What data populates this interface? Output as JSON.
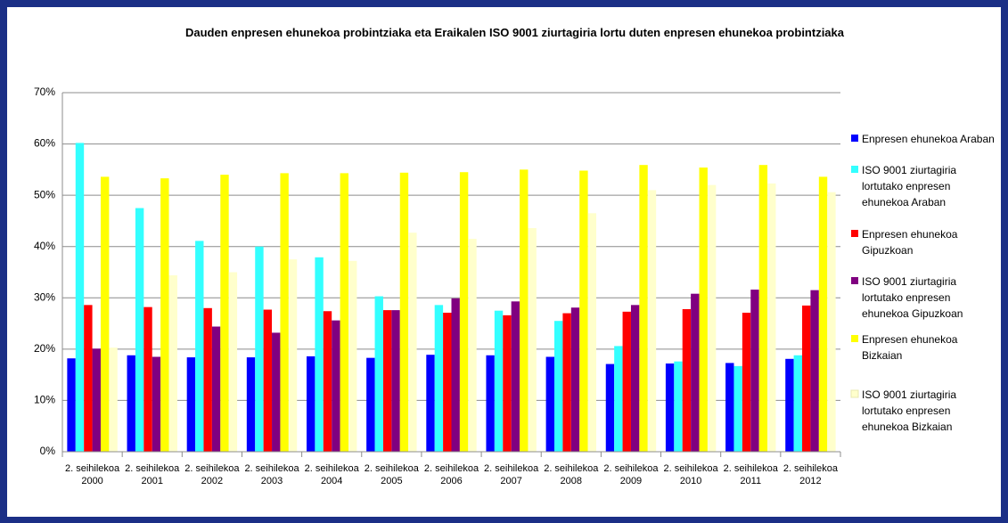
{
  "chart_data": {
    "type": "bar",
    "title": "Dauden enpresen ehunekoa probintziaka eta Eraikalen ISO 9001 ziurtagiria lortu duten enpresen ehunekoa probintziaka",
    "categories": [
      "2. seihilekoa 2000",
      "2. seihilekoa 2001",
      "2. seihilekoa 2002",
      "2. seihilekoa 2003",
      "2. seihilekoa 2004",
      "2. seihilekoa 2005",
      "2. seihilekoa 2006",
      "2. seihilekoa 2007",
      "2. seihilekoa 2008",
      "2. seihilekoa 2009",
      "2. seihilekoa 2010",
      "2. seihilekoa 2011",
      "2. seihilekoa 2012"
    ],
    "series": [
      {
        "name": "Enpresen ehunekoa Araban",
        "color": "#0000ff",
        "values": [
          18.2,
          18.8,
          18.4,
          18.4,
          18.6,
          18.3,
          18.9,
          18.8,
          18.5,
          17.1,
          17.2,
          17.3,
          18.1
        ]
      },
      {
        "name": "ISO 9001 ziurtagiria lortutako enpresen ehunekoa Araban",
        "color": "#33ffff",
        "values": [
          60.2,
          47.5,
          41.1,
          40.0,
          37.9,
          30.3,
          28.6,
          27.5,
          25.5,
          20.6,
          17.6,
          16.7,
          18.8
        ]
      },
      {
        "name": "Enpresen ehunekoa Gipuzkoan",
        "color": "#ff0000",
        "values": [
          28.6,
          28.2,
          28.0,
          27.7,
          27.4,
          27.6,
          27.1,
          26.6,
          27.0,
          27.3,
          27.8,
          27.1,
          28.5
        ]
      },
      {
        "name": "ISO 9001 ziurtagiria lortutako enpresen ehunekoa Gipuzkoan",
        "color": "#800080",
        "values": [
          20.1,
          18.5,
          24.4,
          23.2,
          25.6,
          27.6,
          29.9,
          29.3,
          28.1,
          28.6,
          30.8,
          31.6,
          31.5
        ]
      },
      {
        "name": "Enpresen ehunekoa Bizkaian",
        "color": "#ffff00",
        "values": [
          53.6,
          53.3,
          54.0,
          54.3,
          54.3,
          54.4,
          54.5,
          55.0,
          54.8,
          55.9,
          55.4,
          55.9,
          53.6
        ]
      },
      {
        "name": "ISO 9001 ziurtagiria lortutako enpresen ehunekoa Bizkaian",
        "color": "#ffffcc",
        "values": [
          20.3,
          34.4,
          35.0,
          37.5,
          37.2,
          42.7,
          41.5,
          43.6,
          46.5,
          51.0,
          52.0,
          52.3,
          50.6
        ]
      }
    ],
    "ylim": [
      0,
      70
    ],
    "yticks": [
      {
        "value": 0,
        "label": "0%"
      },
      {
        "value": 10,
        "label": "10%"
      },
      {
        "value": 20,
        "label": "20%"
      },
      {
        "value": 30,
        "label": "30%"
      },
      {
        "value": 40,
        "label": "40%"
      },
      {
        "value": 50,
        "label": "50%"
      },
      {
        "value": 60,
        "label": "60%"
      },
      {
        "value": 70,
        "label": "70%"
      }
    ],
    "grid": true
  }
}
